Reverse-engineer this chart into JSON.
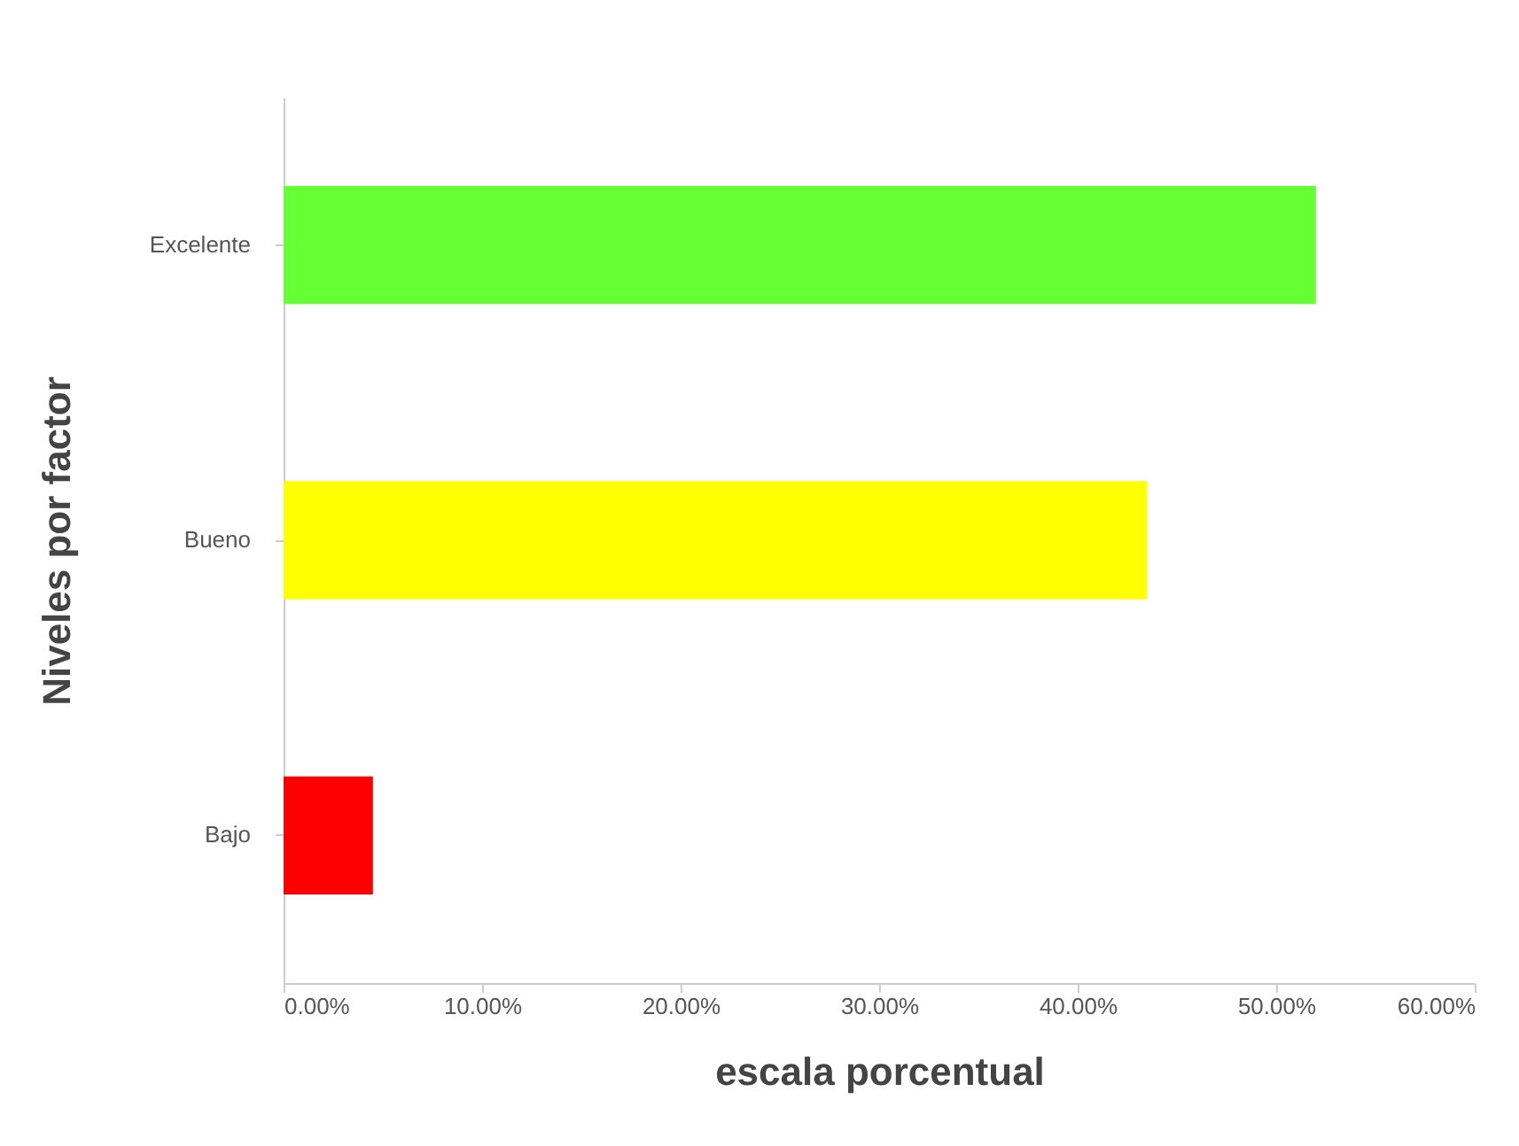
{
  "chart_data": {
    "type": "bar",
    "orientation": "horizontal",
    "xlabel": "escala porcentual",
    "ylabel": "Niveles por factor",
    "categories": [
      "Excelente",
      "Bueno",
      "Bajo"
    ],
    "values": [
      52,
      43.5,
      4.5
    ],
    "colors": [
      "#66ff33",
      "#ffff00",
      "#ff0000"
    ],
    "xlim": [
      0,
      60
    ],
    "xticks": [
      {
        "value": 0,
        "label": "0.00%"
      },
      {
        "value": 10,
        "label": "10.00%"
      },
      {
        "value": 20,
        "label": "20.00%"
      },
      {
        "value": 30,
        "label": "30.00%"
      },
      {
        "value": 40,
        "label": "40.00%"
      },
      {
        "value": 50,
        "label": "50.00%"
      },
      {
        "value": 60,
        "label": "60.00%"
      }
    ]
  }
}
